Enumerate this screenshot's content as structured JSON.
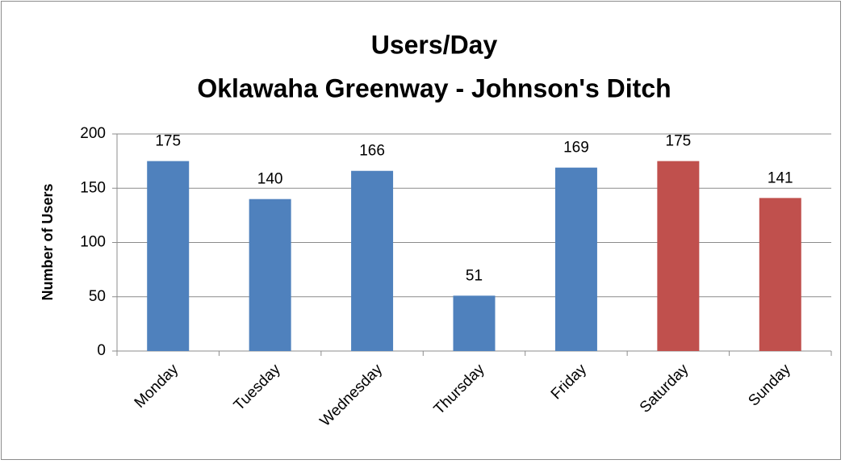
{
  "chart_data": {
    "type": "bar",
    "title": "Users/Day",
    "subtitle": "Oklawaha Greenway - Johnson's Ditch",
    "y_label": "Number of Users",
    "categories": [
      "Monday",
      "Tuesday",
      "Wednesday",
      "Thursday",
      "Friday",
      "Saturday",
      "Sunday"
    ],
    "values": [
      175,
      140,
      166,
      51,
      169,
      175,
      141
    ],
    "colors": [
      "#4f81bd",
      "#4f81bd",
      "#4f81bd",
      "#4f81bd",
      "#4f81bd",
      "#c0504d",
      "#c0504d"
    ],
    "ylim": [
      0,
      200
    ],
    "yticks": [
      0,
      50,
      100,
      150,
      200
    ],
    "grid": true
  }
}
